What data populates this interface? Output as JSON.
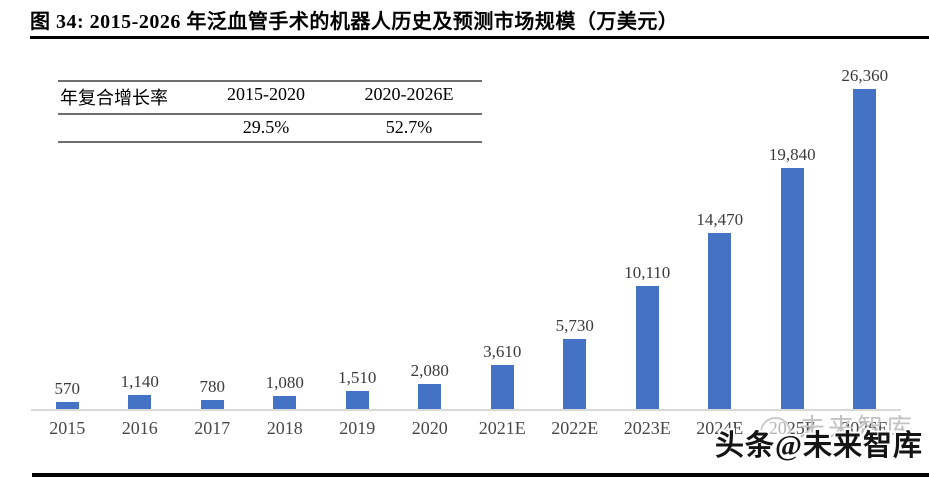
{
  "header": {
    "title": "图 34: 2015-2026 年泛血管手术的机器人历史及预测市场规模（万美元）"
  },
  "cagr_table": {
    "header": {
      "label": "年复合增长率",
      "period1": "2015-2020",
      "period2": "2020-2026E"
    },
    "row": {
      "label": "",
      "value1": "29.5%",
      "value2": "52.7%"
    }
  },
  "chart_data": {
    "type": "bar",
    "title": "2015-2026 年泛血管手术的机器人历史及预测市场规模（万美元）",
    "categories": [
      "2015",
      "2016",
      "2017",
      "2018",
      "2019",
      "2020",
      "2021E",
      "2022E",
      "2023E",
      "2024E",
      "2025E",
      "2026E"
    ],
    "values": [
      570,
      1140,
      780,
      1080,
      1510,
      2080,
      3610,
      5730,
      10110,
      14470,
      19840,
      26360
    ],
    "value_labels": [
      "570",
      "1,140",
      "780",
      "1,080",
      "1,510",
      "2,080",
      "3,610",
      "5,730",
      "10,110",
      "14,470",
      "19,840",
      "26,360"
    ],
    "xlabel": "",
    "ylabel": "",
    "ylim": [
      0,
      26360
    ],
    "grid": false,
    "legend": false,
    "bar_color": "#4472c4",
    "axis_line_color": "#d9d9d9",
    "value_label_color": "#3a3a3a",
    "tick_label_color": "#484848"
  },
  "watermark": {
    "faint_text": "未来智库",
    "main_text": "头条@未来智库"
  },
  "colors": {
    "title_rule": "#000000",
    "bottom_rule": "#000000",
    "table_border": "#6e6e6e"
  }
}
